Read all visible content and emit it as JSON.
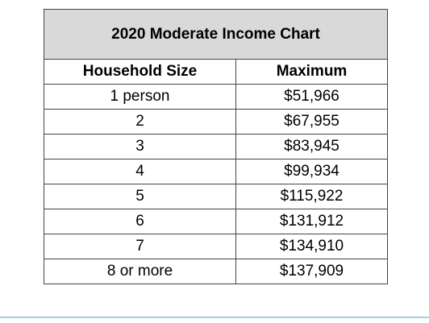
{
  "chart_data": {
    "type": "table",
    "title": "2020 Moderate Income Chart",
    "columns": [
      "Household Size",
      "Maximum"
    ],
    "rows": [
      [
        "1 person",
        "$51,966"
      ],
      [
        "2",
        "$67,955"
      ],
      [
        "3",
        "$83,945"
      ],
      [
        "4",
        "$99,934"
      ],
      [
        "5",
        "$115,922"
      ],
      [
        "6",
        "$131,912"
      ],
      [
        "7",
        "$134,910"
      ],
      [
        "8 or more",
        "$137,909"
      ]
    ]
  },
  "colors": {
    "title_background": "#d9d9d9",
    "border": "#444444",
    "bottom_rule": "#a9cce3"
  }
}
